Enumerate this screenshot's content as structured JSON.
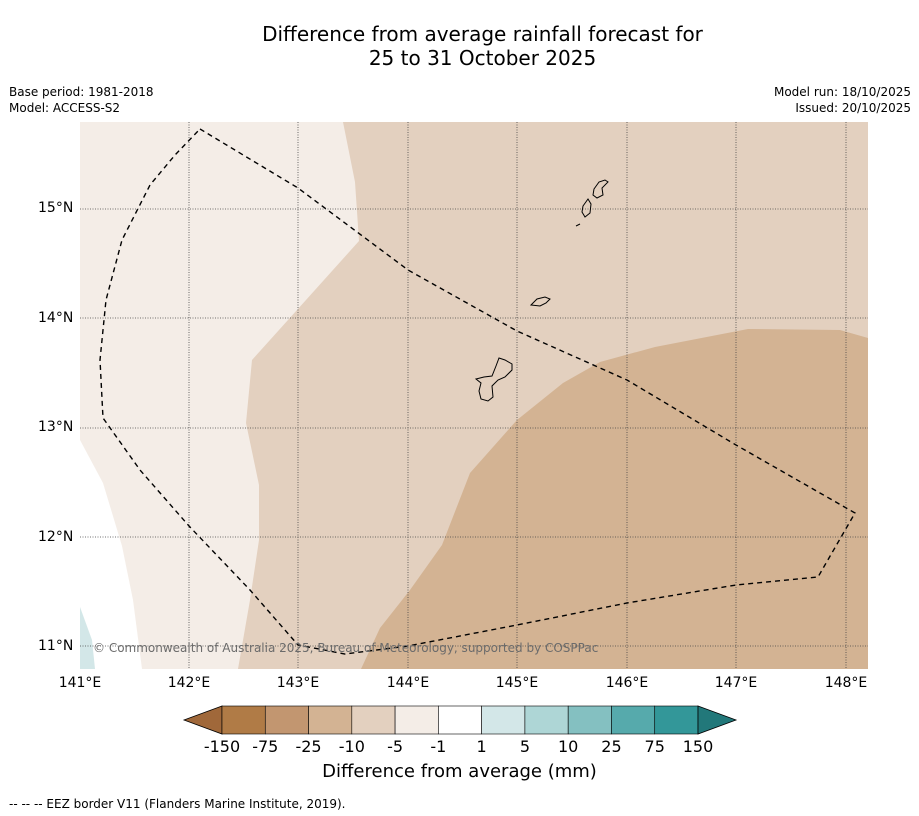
{
  "title": {
    "line1": "Difference from average rainfall forecast for",
    "line2": "25 to 31 October 2025"
  },
  "meta": {
    "base_period": "Base period: 1981-2018",
    "model": "Model: ACCESS-S2",
    "model_run": "Model run: 18/10/2025",
    "issued": "Issued: 20/10/2025"
  },
  "map": {
    "lon_range": [
      141,
      148.2
    ],
    "lat_range": [
      10.8,
      15.8
    ],
    "x_ticks": [
      "141°E",
      "142°E",
      "143°E",
      "144°E",
      "145°E",
      "146°E",
      "147°E",
      "148°E"
    ],
    "y_ticks": [
      "15°N",
      "14°N",
      "13°N",
      "12°N",
      "11°N"
    ],
    "copyright": "© Commonwealth of Australia 2025, Bureau of Meteorology, supported by COSPPac"
  },
  "colorbar": {
    "ticks": [
      "-150",
      "-75",
      "-25",
      "-10",
      "-5",
      "-1",
      "1",
      "5",
      "10",
      "25",
      "75",
      "150"
    ],
    "colors": [
      "#a0683a",
      "#b07b46",
      "#c29670",
      "#d3b393",
      "#e3d0bf",
      "#f4ede7",
      "#ffffff",
      "#d3e7e8",
      "#aed6d6",
      "#84c0c1",
      "#56aaac",
      "#339799",
      "#22787a"
    ],
    "label": "Difference from average (mm)"
  },
  "footnote": "--  --  -- EEZ border V11 (Flanders Marine Institute, 2019)."
}
